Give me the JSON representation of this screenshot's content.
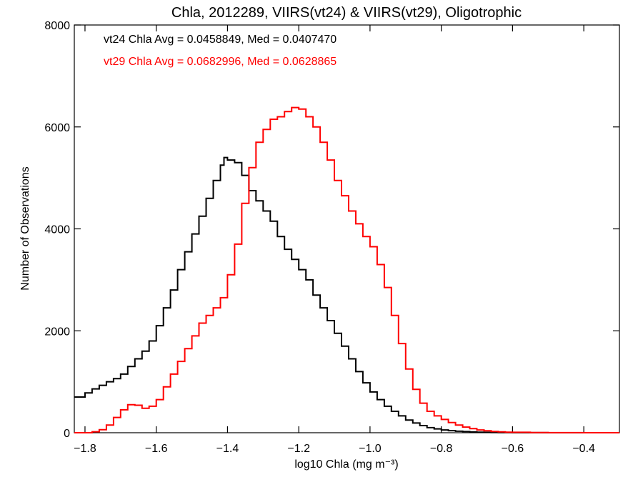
{
  "chart_data": {
    "type": "line",
    "step": true,
    "title": "Chla, 2012289, VIIRS(vt24) & VIIRS(vt29), Oligotrophic",
    "xlabel": "log10 Chla (mg m⁻³)",
    "ylabel": "Number of Observations",
    "xlim": [
      -1.83,
      -0.3
    ],
    "ylim": [
      0,
      8000
    ],
    "xticks": [
      -1.8,
      -1.6,
      -1.4,
      -1.2,
      -1.0,
      -0.8,
      -0.6,
      -0.4
    ],
    "xtick_labels": [
      "−1.8",
      "−1.6",
      "−1.4",
      "−1.2",
      "−1.0",
      "−0.8",
      "−0.6",
      "−0.4"
    ],
    "yticks": [
      0,
      2000,
      4000,
      6000,
      8000
    ],
    "ytick_labels": [
      "0",
      "2000",
      "4000",
      "6000",
      "8000"
    ],
    "grid": false,
    "annotations": [
      {
        "text": "vt24 Chla Avg = 0.0458849, Med = 0.0407470",
        "color": "#000000"
      },
      {
        "text": "vt29 Chla Avg = 0.0682996, Med = 0.0628865",
        "color": "#ff0000"
      }
    ],
    "series": [
      {
        "color": "#000000",
        "x": [
          -1.83,
          -1.8,
          -1.78,
          -1.76,
          -1.74,
          -1.72,
          -1.7,
          -1.68,
          -1.66,
          -1.64,
          -1.62,
          -1.6,
          -1.58,
          -1.56,
          -1.54,
          -1.52,
          -1.5,
          -1.48,
          -1.46,
          -1.44,
          -1.42,
          -1.41,
          -1.4,
          -1.38,
          -1.36,
          -1.34,
          -1.32,
          -1.3,
          -1.28,
          -1.26,
          -1.24,
          -1.22,
          -1.2,
          -1.18,
          -1.16,
          -1.14,
          -1.12,
          -1.1,
          -1.08,
          -1.06,
          -1.04,
          -1.02,
          -1.0,
          -0.98,
          -0.96,
          -0.94,
          -0.92,
          -0.9,
          -0.88,
          -0.86,
          -0.84,
          -0.82,
          -0.8,
          -0.78,
          -0.76,
          -0.74,
          -0.72,
          -0.7,
          -0.68,
          -0.66,
          -0.64,
          -0.62,
          -0.6,
          -0.55,
          -0.5,
          -0.4,
          -0.3
        ],
        "y": [
          700,
          780,
          860,
          930,
          1000,
          1060,
          1150,
          1300,
          1450,
          1600,
          1800,
          2100,
          2450,
          2800,
          3200,
          3550,
          3900,
          4250,
          4600,
          4950,
          5250,
          5400,
          5350,
          5300,
          5050,
          4750,
          4550,
          4350,
          4150,
          3850,
          3600,
          3400,
          3200,
          3000,
          2700,
          2450,
          2200,
          1950,
          1700,
          1450,
          1200,
          980,
          800,
          650,
          520,
          420,
          330,
          250,
          190,
          140,
          100,
          75,
          55,
          40,
          30,
          22,
          15,
          10,
          8,
          6,
          4,
          3,
          2,
          1,
          0,
          0,
          0
        ]
      },
      {
        "color": "#ff0000",
        "x": [
          -1.83,
          -1.8,
          -1.78,
          -1.76,
          -1.74,
          -1.72,
          -1.7,
          -1.68,
          -1.66,
          -1.64,
          -1.62,
          -1.6,
          -1.58,
          -1.56,
          -1.54,
          -1.52,
          -1.5,
          -1.48,
          -1.46,
          -1.44,
          -1.42,
          -1.4,
          -1.38,
          -1.36,
          -1.34,
          -1.32,
          -1.3,
          -1.28,
          -1.26,
          -1.24,
          -1.22,
          -1.2,
          -1.18,
          -1.16,
          -1.14,
          -1.12,
          -1.1,
          -1.08,
          -1.06,
          -1.04,
          -1.02,
          -1.0,
          -0.98,
          -0.96,
          -0.94,
          -0.92,
          -0.9,
          -0.88,
          -0.86,
          -0.84,
          -0.82,
          -0.8,
          -0.78,
          -0.76,
          -0.74,
          -0.72,
          -0.7,
          -0.68,
          -0.66,
          -0.64,
          -0.62,
          -0.6,
          -0.55,
          -0.5,
          -0.4,
          -0.3
        ],
        "y": [
          0,
          0,
          20,
          60,
          150,
          300,
          450,
          550,
          540,
          480,
          520,
          650,
          900,
          1150,
          1400,
          1650,
          1900,
          2150,
          2300,
          2450,
          2650,
          3100,
          3700,
          4500,
          5200,
          5700,
          5950,
          6150,
          6200,
          6300,
          6380,
          6350,
          6200,
          6000,
          5700,
          5350,
          4950,
          4650,
          4350,
          4100,
          3850,
          3650,
          3300,
          2850,
          2300,
          1750,
          1250,
          850,
          580,
          420,
          330,
          260,
          200,
          150,
          110,
          80,
          55,
          38,
          25,
          17,
          11,
          8,
          4,
          2,
          0,
          0
        ]
      }
    ]
  }
}
